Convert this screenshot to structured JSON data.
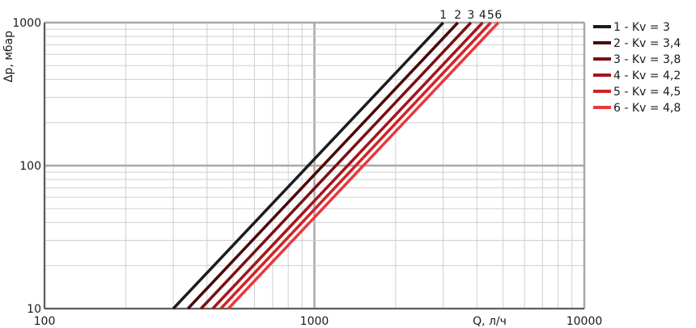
{
  "chart_data": {
    "type": "line",
    "title": "",
    "xlabel": "Q, л/ч",
    "ylabel": "Δp, мбар",
    "x_scale": "log",
    "y_scale": "log",
    "xlim": [
      100,
      10000
    ],
    "ylim": [
      10,
      1000
    ],
    "grid": true,
    "legend_position": "right",
    "x_ticks": [
      "100",
      "1000",
      "10000"
    ],
    "y_ticks": [
      "10",
      "100",
      "1000"
    ],
    "series": [
      {
        "name": "1 - Kv = 3",
        "curve_label": "1",
        "color": "#1c1c1c",
        "kv": 3.0,
        "x": [
          300,
          3000
        ],
        "y": [
          10,
          1000
        ]
      },
      {
        "name": "2 - Kv = 3,4",
        "curve_label": "2",
        "color": "#4a0808",
        "kv": 3.4,
        "x": [
          340,
          3400
        ],
        "y": [
          10,
          1000
        ]
      },
      {
        "name": "3 - Kv = 3,8",
        "curve_label": "3",
        "color": "#7a0f10",
        "kv": 3.8,
        "x": [
          380,
          3800
        ],
        "y": [
          10,
          1000
        ]
      },
      {
        "name": "4 - Kv = 4,2",
        "curve_label": "4",
        "color": "#a5141a",
        "kv": 4.2,
        "x": [
          420,
          4200
        ],
        "y": [
          10,
          1000
        ]
      },
      {
        "name": "5 - Kv = 4,5",
        "curve_label": "5",
        "color": "#cf2429",
        "kv": 4.5,
        "x": [
          450,
          4500
        ],
        "y": [
          10,
          1000
        ]
      },
      {
        "name": "6 - Kv = 4,8",
        "curve_label": "6",
        "color": "#e8383d",
        "kv": 4.8,
        "x": [
          480,
          4800
        ],
        "y": [
          10,
          1000
        ]
      }
    ]
  }
}
